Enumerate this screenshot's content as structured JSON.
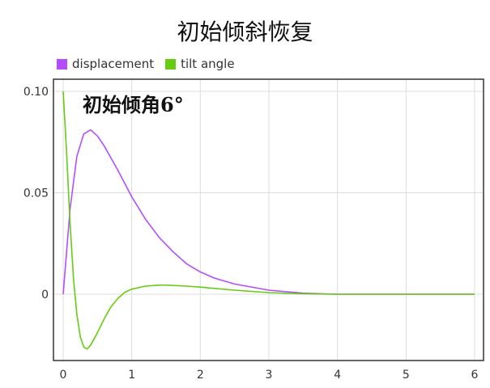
{
  "chart_data": {
    "type": "line",
    "title": "初始倾斜恢复",
    "annotation": "初始倾角6°",
    "xlim": [
      0,
      6
    ],
    "ylim": [
      -0.03,
      0.1
    ],
    "x_ticks": [
      0,
      1,
      2,
      3,
      4,
      5,
      6
    ],
    "y_ticks": [
      {
        "value": 0.1,
        "label": "0.10"
      },
      {
        "value": 0.05,
        "label": "0.05"
      },
      {
        "value": 0,
        "label": "0"
      }
    ],
    "grid": true,
    "legend_placement": "top-left",
    "series": [
      {
        "name": "displacement",
        "color": "#b44dff",
        "x": [
          0,
          0.1,
          0.2,
          0.3,
          0.4,
          0.5,
          0.6,
          0.8,
          1.0,
          1.2,
          1.4,
          1.6,
          1.8,
          2.0,
          2.2,
          2.5,
          3.0,
          3.5,
          4.0,
          5.0,
          6.0
        ],
        "y": [
          0,
          0.042,
          0.068,
          0.079,
          0.081,
          0.078,
          0.073,
          0.061,
          0.048,
          0.037,
          0.028,
          0.021,
          0.015,
          0.011,
          0.008,
          0.005,
          0.002,
          0.0005,
          0,
          0,
          0
        ]
      },
      {
        "name": "tilt angle",
        "color": "#66cc11",
        "x": [
          0,
          0.05,
          0.1,
          0.15,
          0.2,
          0.25,
          0.3,
          0.35,
          0.4,
          0.5,
          0.6,
          0.7,
          0.8,
          0.9,
          1.0,
          1.2,
          1.4,
          1.5,
          1.8,
          2.0,
          2.5,
          3.0,
          3.5,
          4.0,
          5.0,
          6.0
        ],
        "y": [
          0.1,
          0.07,
          0.035,
          0.008,
          -0.01,
          -0.021,
          -0.026,
          -0.027,
          -0.025,
          -0.019,
          -0.012,
          -0.006,
          -0.002,
          0.001,
          0.0025,
          0.004,
          0.0045,
          0.0045,
          0.004,
          0.0035,
          0.002,
          0.0008,
          0.0002,
          0,
          0,
          0
        ]
      }
    ]
  }
}
